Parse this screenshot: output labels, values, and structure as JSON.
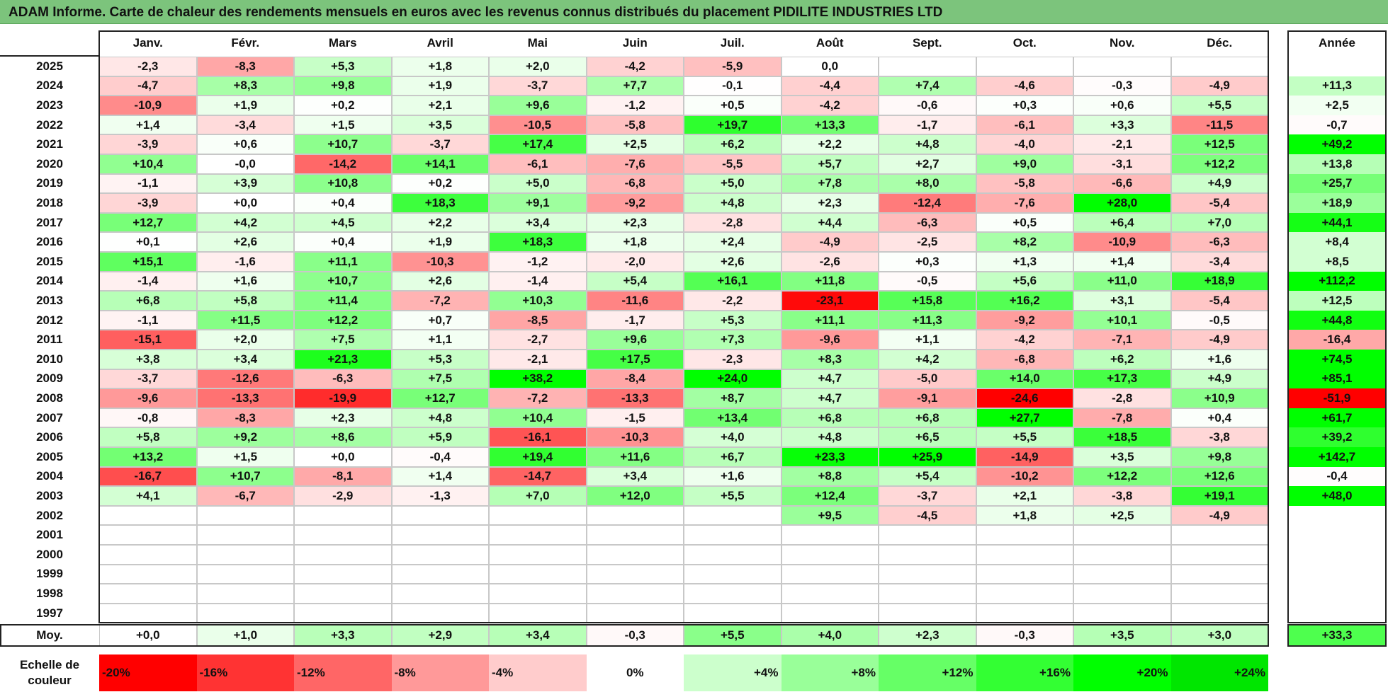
{
  "title": "ADAM Informe. Carte de chaleur des rendements mensuels en euros avec les revenus connus distribués du placement PIDILITE INDUSTRIES LTD",
  "chart_data": {
    "type": "heatmap",
    "columns": [
      "Janv.",
      "Févr.",
      "Mars",
      "Avril",
      "Mai",
      "Juin",
      "Juil.",
      "Août",
      "Sept.",
      "Oct.",
      "Nov.",
      "Déc."
    ],
    "year_column": "Année",
    "rows": [
      {
        "year": "2025",
        "values": [
          "-2,3",
          "-8,3",
          "+5,3",
          "+1,8",
          "+2,0",
          "-4,2",
          "-5,9",
          "0,0",
          "",
          "",
          "",
          ""
        ],
        "annual": ""
      },
      {
        "year": "2024",
        "values": [
          "-4,7",
          "+8,3",
          "+9,8",
          "+1,9",
          "-3,7",
          "+7,7",
          "-0,1",
          "-4,4",
          "+7,4",
          "-4,6",
          "-0,3",
          "-4,9"
        ],
        "annual": "+11,3"
      },
      {
        "year": "2023",
        "values": [
          "-10,9",
          "+1,9",
          "+0,2",
          "+2,1",
          "+9,6",
          "-1,2",
          "+0,5",
          "-4,2",
          "-0,6",
          "+0,3",
          "+0,6",
          "+5,5"
        ],
        "annual": "+2,5"
      },
      {
        "year": "2022",
        "values": [
          "+1,4",
          "-3,4",
          "+1,5",
          "+3,5",
          "-10,5",
          "-5,8",
          "+19,7",
          "+13,3",
          "-1,7",
          "-6,1",
          "+3,3",
          "-11,5"
        ],
        "annual": "-0,7"
      },
      {
        "year": "2021",
        "values": [
          "-3,9",
          "+0,6",
          "+10,7",
          "-3,7",
          "+17,4",
          "+2,5",
          "+6,2",
          "+2,2",
          "+4,8",
          "-4,0",
          "-2,1",
          "+12,5"
        ],
        "annual": "+49,2"
      },
      {
        "year": "2020",
        "values": [
          "+10,4",
          "-0,0",
          "-14,2",
          "+14,1",
          "-6,1",
          "-7,6",
          "-5,5",
          "+5,7",
          "+2,7",
          "+9,0",
          "-3,1",
          "+12,2"
        ],
        "annual": "+13,8"
      },
      {
        "year": "2019",
        "values": [
          "-1,1",
          "+3,9",
          "+10,8",
          "+0,2",
          "+5,0",
          "-6,8",
          "+5,0",
          "+7,8",
          "+8,0",
          "-5,8",
          "-6,6",
          "+4,9"
        ],
        "annual": "+25,7"
      },
      {
        "year": "2018",
        "values": [
          "-3,9",
          "+0,0",
          "+0,4",
          "+18,3",
          "+9,1",
          "-9,2",
          "+4,8",
          "+2,3",
          "-12,4",
          "-7,6",
          "+28,0",
          "-5,4"
        ],
        "annual": "+18,9"
      },
      {
        "year": "2017",
        "values": [
          "+12,7",
          "+4,2",
          "+4,5",
          "+2,2",
          "+3,4",
          "+2,3",
          "-2,8",
          "+4,4",
          "-6,3",
          "+0,5",
          "+6,4",
          "+7,0"
        ],
        "annual": "+44,1"
      },
      {
        "year": "2016",
        "values": [
          "+0,1",
          "+2,6",
          "+0,4",
          "+1,9",
          "+18,3",
          "+1,8",
          "+2,4",
          "-4,9",
          "-2,5",
          "+8,2",
          "-10,9",
          "-6,3"
        ],
        "annual": "+8,4"
      },
      {
        "year": "2015",
        "values": [
          "+15,1",
          "-1,6",
          "+11,1",
          "-10,3",
          "-1,2",
          "-2,0",
          "+2,6",
          "-2,6",
          "+0,3",
          "+1,3",
          "+1,4",
          "-3,4"
        ],
        "annual": "+8,5"
      },
      {
        "year": "2014",
        "values": [
          "-1,4",
          "+1,6",
          "+10,7",
          "+2,6",
          "-1,4",
          "+5,4",
          "+16,1",
          "+11,8",
          "-0,5",
          "+5,6",
          "+11,0",
          "+18,9"
        ],
        "annual": "+112,2"
      },
      {
        "year": "2013",
        "values": [
          "+6,8",
          "+5,8",
          "+11,4",
          "-7,2",
          "+10,3",
          "-11,6",
          "-2,2",
          "-23,1",
          "+15,8",
          "+16,2",
          "+3,1",
          "-5,4"
        ],
        "annual": "+12,5"
      },
      {
        "year": "2012",
        "values": [
          "-1,1",
          "+11,5",
          "+12,2",
          "+0,7",
          "-8,5",
          "-1,7",
          "+5,3",
          "+11,1",
          "+11,3",
          "-9,2",
          "+10,1",
          "-0,5"
        ],
        "annual": "+44,8"
      },
      {
        "year": "2011",
        "values": [
          "-15,1",
          "+2,0",
          "+7,5",
          "+1,1",
          "-2,7",
          "+9,6",
          "+7,3",
          "-9,6",
          "+1,1",
          "-4,2",
          "-7,1",
          "-4,9"
        ],
        "annual": "-16,4"
      },
      {
        "year": "2010",
        "values": [
          "+3,8",
          "+3,4",
          "+21,3",
          "+5,3",
          "-2,1",
          "+17,5",
          "-2,3",
          "+8,3",
          "+4,2",
          "-6,8",
          "+6,2",
          "+1,6"
        ],
        "annual": "+74,5"
      },
      {
        "year": "2009",
        "values": [
          "-3,7",
          "-12,6",
          "-6,3",
          "+7,5",
          "+38,2",
          "-8,4",
          "+24,0",
          "+4,7",
          "-5,0",
          "+14,0",
          "+17,3",
          "+4,9"
        ],
        "annual": "+85,1"
      },
      {
        "year": "2008",
        "values": [
          "-9,6",
          "-13,3",
          "-19,9",
          "+12,7",
          "-7,2",
          "-13,3",
          "+8,7",
          "+4,7",
          "-9,1",
          "-24,6",
          "-2,8",
          "+10,9"
        ],
        "annual": "-51,9"
      },
      {
        "year": "2007",
        "values": [
          "-0,8",
          "-8,3",
          "+2,3",
          "+4,8",
          "+10,4",
          "-1,5",
          "+13,4",
          "+6,8",
          "+6,8",
          "+27,7",
          "-7,8",
          "+0,4"
        ],
        "annual": "+61,7"
      },
      {
        "year": "2006",
        "values": [
          "+5,8",
          "+9,2",
          "+8,6",
          "+5,9",
          "-16,1",
          "-10,3",
          "+4,0",
          "+4,8",
          "+6,5",
          "+5,5",
          "+18,5",
          "-3,8"
        ],
        "annual": "+39,2"
      },
      {
        "year": "2005",
        "values": [
          "+13,2",
          "+1,5",
          "+0,0",
          "-0,4",
          "+19,4",
          "+11,6",
          "+6,7",
          "+23,3",
          "+25,9",
          "-14,9",
          "+3,5",
          "+9,8"
        ],
        "annual": "+142,7"
      },
      {
        "year": "2004",
        "values": [
          "-16,7",
          "+10,7",
          "-8,1",
          "+1,4",
          "-14,7",
          "+3,4",
          "+1,6",
          "+8,8",
          "+5,4",
          "-10,2",
          "+12,2",
          "+12,6"
        ],
        "annual": "-0,4"
      },
      {
        "year": "2003",
        "values": [
          "+4,1",
          "-6,7",
          "-2,9",
          "-1,3",
          "+7,0",
          "+12,0",
          "+5,5",
          "+12,4",
          "-3,7",
          "+2,1",
          "-3,8",
          "+19,1"
        ],
        "annual": "+48,0"
      },
      {
        "year": "2002",
        "values": [
          "",
          "",
          "",
          "",
          "",
          "",
          "",
          "+9,5",
          "-4,5",
          "+1,8",
          "+2,5",
          "-4,9"
        ],
        "annual": ""
      },
      {
        "year": "2001",
        "values": [
          "",
          "",
          "",
          "",
          "",
          "",
          "",
          "",
          "",
          "",
          "",
          ""
        ],
        "annual": ""
      },
      {
        "year": "2000",
        "values": [
          "",
          "",
          "",
          "",
          "",
          "",
          "",
          "",
          "",
          "",
          "",
          ""
        ],
        "annual": ""
      },
      {
        "year": "1999",
        "values": [
          "",
          "",
          "",
          "",
          "",
          "",
          "",
          "",
          "",
          "",
          "",
          ""
        ],
        "annual": ""
      },
      {
        "year": "1998",
        "values": [
          "",
          "",
          "",
          "",
          "",
          "",
          "",
          "",
          "",
          "",
          "",
          ""
        ],
        "annual": ""
      },
      {
        "year": "1997",
        "values": [
          "",
          "",
          "",
          "",
          "",
          "",
          "",
          "",
          "",
          "",
          "",
          ""
        ],
        "annual": ""
      }
    ],
    "average": {
      "label": "Moy.",
      "values": [
        "+0,0",
        "+1,0",
        "+3,3",
        "+2,9",
        "+3,4",
        "-0,3",
        "+5,5",
        "+4,0",
        "+2,3",
        "-0,3",
        "+3,5",
        "+3,0"
      ],
      "annual": "+33,3"
    },
    "color_scale": {
      "label": "Echelle de couleur",
      "steps": [
        {
          "label": "-20%",
          "value": -20,
          "color": "#ff0000"
        },
        {
          "label": "-16%",
          "value": -16,
          "color": "#ff3333"
        },
        {
          "label": "-12%",
          "value": -12,
          "color": "#ff6666"
        },
        {
          "label": "-8%",
          "value": -8,
          "color": "#ff9999"
        },
        {
          "label": "-4%",
          "value": -4,
          "color": "#ffcccc"
        },
        {
          "label": "0%",
          "value": 0,
          "color": "#ffffff"
        },
        {
          "label": "+4%",
          "value": 4,
          "color": "#ccffcc"
        },
        {
          "label": "+8%",
          "value": 8,
          "color": "#99ff99"
        },
        {
          "label": "+12%",
          "value": 12,
          "color": "#66ff66"
        },
        {
          "label": "+16%",
          "value": 16,
          "color": "#33ff33"
        },
        {
          "label": "+20%",
          "value": 20,
          "color": "#00ff00"
        },
        {
          "label": "+24%",
          "value": 24,
          "color": "#00e600"
        }
      ]
    }
  }
}
